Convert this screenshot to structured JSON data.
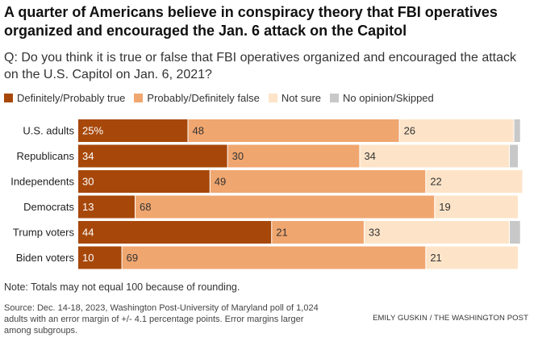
{
  "title": "A quarter of Americans believe in conspiracy theory that FBI operatives organized and encouraged the Jan. 6 attack on the Capitol",
  "question": "Q: Do you think it is true or false that FBI operatives organized and encouraged the attack on the U.S. Capitol on Jan. 6, 2021?",
  "legend": [
    {
      "label": "Definitely/Probably true",
      "color": "#a7480a"
    },
    {
      "label": "Probably/Definitely false",
      "color": "#f0a66f"
    },
    {
      "label": "Not sure",
      "color": "#fde4c8"
    },
    {
      "label": "No opinion/Skipped",
      "color": "#c8c8c8"
    }
  ],
  "note": "Note: Totals may not equal 100 because of rounding.",
  "source": "Source: Dec. 14-18, 2023, Washington Post-University of Maryland poll of 1,024 adults with an error margin of +/- 4.1 percentage points. Error margins larger among subgroups.",
  "credit": "EMILY GUSKIN / THE WASHINGTON POST",
  "chart_data": {
    "type": "bar",
    "orientation": "horizontal",
    "stacked": true,
    "categories": [
      "U.S. adults",
      "Republicans",
      "Independents",
      "Democrats",
      "Trump voters",
      "Biden voters"
    ],
    "series": [
      {
        "name": "Definitely/Probably true",
        "color": "#a7480a",
        "values": [
          25,
          34,
          30,
          13,
          44,
          10
        ],
        "labels": [
          "25%",
          "34",
          "30",
          "13",
          "44",
          "10"
        ]
      },
      {
        "name": "Probably/Definitely false",
        "color": "#f0a66f",
        "values": [
          48,
          30,
          49,
          68,
          21,
          69
        ],
        "labels": [
          "48",
          "30",
          "49",
          "68",
          "21",
          "69"
        ]
      },
      {
        "name": "Not sure",
        "color": "#fde4c8",
        "values": [
          26,
          34,
          22,
          19,
          33,
          21
        ],
        "labels": [
          "26",
          "34",
          "22",
          "19",
          "33",
          "21"
        ]
      },
      {
        "name": "No opinion/Skipped",
        "color": "#c8c8c8",
        "values": [
          1.5,
          2,
          0,
          0,
          2.5,
          0
        ],
        "labels": [
          "",
          "",
          "",
          "",
          "",
          ""
        ]
      }
    ],
    "xlim": [
      0,
      100
    ]
  }
}
